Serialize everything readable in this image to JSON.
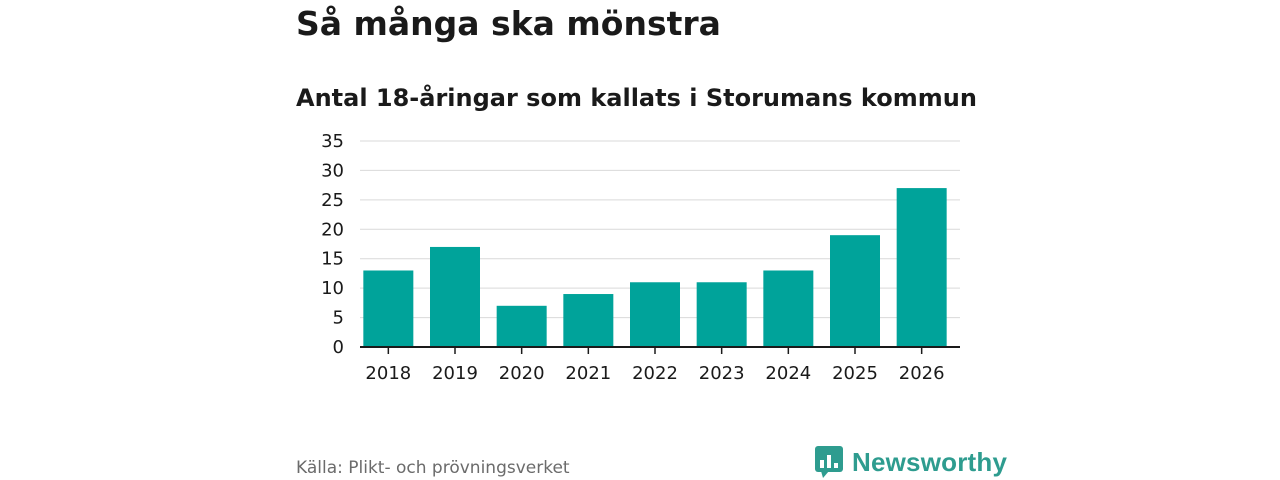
{
  "header": {
    "title": "Så många ska mönstra",
    "subtitle": "Antal 18-åringar som kallats i Storumans kommun"
  },
  "footer": {
    "source": "Källa: Plikt- och prövningsverket",
    "brand": "Newsworthy",
    "brand_icon": "bar-chart-speech-bubble-icon",
    "brand_color": "#2e9c8f"
  },
  "chart_data": {
    "type": "bar",
    "categories": [
      "2018",
      "2019",
      "2020",
      "2021",
      "2022",
      "2023",
      "2024",
      "2025",
      "2026"
    ],
    "values": [
      13,
      17,
      7,
      9,
      11,
      11,
      13,
      19,
      27
    ],
    "ylim": [
      0,
      35
    ],
    "yticks": [
      0,
      5,
      10,
      15,
      20,
      25,
      30,
      35
    ],
    "grid": true,
    "legend": "none",
    "bar_color": "#00a39a",
    "xlabel": "",
    "ylabel": ""
  }
}
